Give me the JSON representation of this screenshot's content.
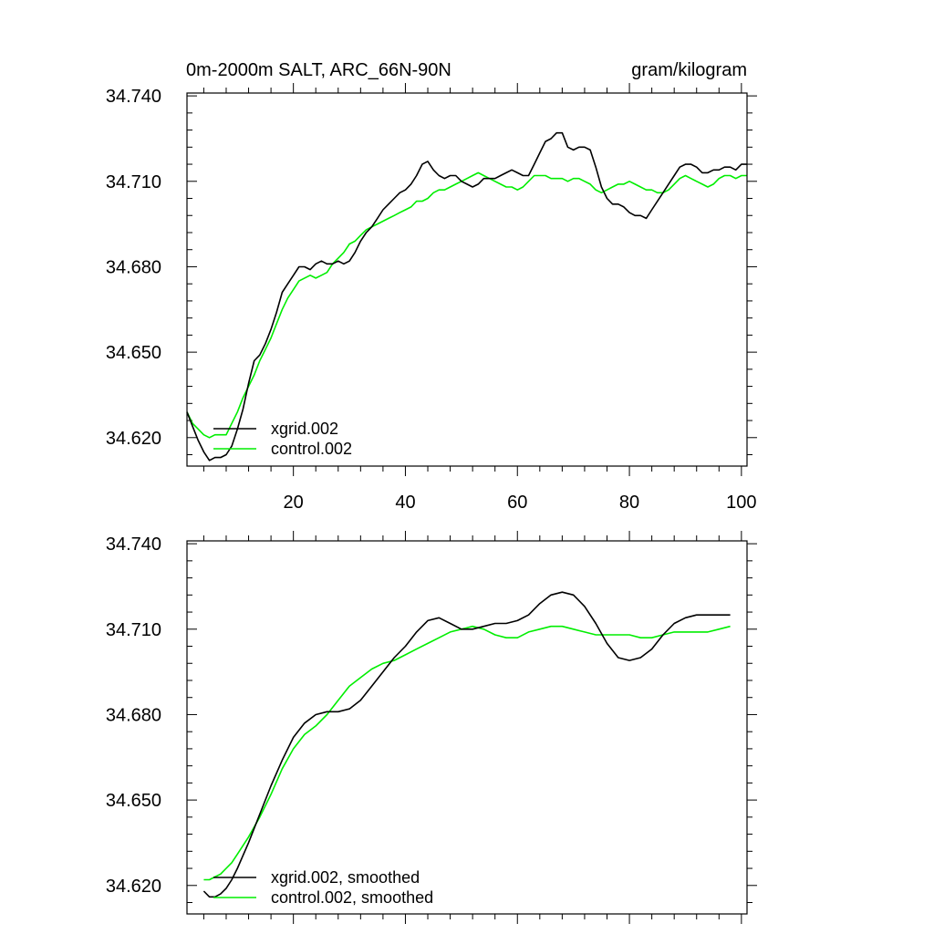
{
  "colors": {
    "xgrid": "#000000",
    "control": "#00ee00"
  },
  "chart_data": [
    {
      "type": "line",
      "title": "0m-2000m SALT, ARC_66N-90N",
      "units": "gram/kilogram",
      "xlim": [
        1,
        101
      ],
      "ylim": [
        34.61,
        34.741
      ],
      "xticks": [
        20,
        40,
        60,
        80,
        100
      ],
      "xtick_labels": [
        "20",
        "40",
        "60",
        "80",
        "100"
      ],
      "yticks": [
        34.62,
        34.65,
        34.68,
        34.71,
        34.74
      ],
      "ytick_labels": [
        "34.620",
        "34.650",
        "34.680",
        "34.710",
        "34.740"
      ],
      "legend_position": "bottom-left",
      "series": [
        {
          "name": "xgrid.002",
          "color": "#000000",
          "x": [
            1,
            2,
            3,
            4,
            5,
            6,
            7,
            8,
            9,
            10,
            11,
            12,
            13,
            14,
            15,
            16,
            17,
            18,
            19,
            20,
            21,
            22,
            23,
            24,
            25,
            26,
            27,
            28,
            29,
            30,
            31,
            32,
            33,
            34,
            35,
            36,
            37,
            38,
            39,
            40,
            41,
            42,
            43,
            44,
            45,
            46,
            47,
            48,
            49,
            50,
            51,
            52,
            53,
            54,
            55,
            56,
            57,
            58,
            59,
            60,
            61,
            62,
            63,
            64,
            65,
            66,
            67,
            68,
            69,
            70,
            71,
            72,
            73,
            74,
            75,
            76,
            77,
            78,
            79,
            80,
            81,
            82,
            83,
            84,
            85,
            86,
            87,
            88,
            89,
            90,
            91,
            92,
            93,
            94,
            95,
            96,
            97,
            98,
            99,
            100,
            101
          ],
          "y": [
            34.629,
            34.624,
            34.619,
            34.615,
            34.612,
            34.613,
            34.613,
            34.614,
            34.617,
            34.623,
            34.63,
            34.639,
            34.647,
            34.649,
            34.653,
            34.658,
            34.664,
            34.671,
            34.674,
            34.677,
            34.68,
            34.68,
            34.679,
            34.681,
            34.682,
            34.681,
            34.681,
            34.682,
            34.681,
            34.682,
            34.685,
            34.689,
            34.692,
            34.694,
            34.697,
            34.7,
            34.702,
            34.704,
            34.706,
            34.707,
            34.709,
            34.712,
            34.716,
            34.717,
            34.714,
            34.712,
            34.711,
            34.712,
            34.712,
            34.71,
            34.709,
            34.708,
            34.709,
            34.711,
            34.711,
            34.711,
            34.712,
            34.713,
            34.714,
            34.713,
            34.712,
            34.712,
            34.716,
            34.72,
            34.724,
            34.725,
            34.727,
            34.727,
            34.722,
            34.721,
            34.722,
            34.722,
            34.721,
            34.715,
            34.708,
            34.704,
            34.702,
            34.702,
            34.701,
            34.699,
            34.698,
            34.698,
            34.697,
            34.7,
            34.703,
            34.706,
            34.709,
            34.712,
            34.715,
            34.716,
            34.716,
            34.715,
            34.713,
            34.713,
            34.714,
            34.714,
            34.715,
            34.715,
            34.714,
            34.716,
            34.716
          ]
        },
        {
          "name": "control.002",
          "color": "#00ee00",
          "x": [
            1,
            2,
            3,
            4,
            5,
            6,
            7,
            8,
            9,
            10,
            11,
            12,
            13,
            14,
            15,
            16,
            17,
            18,
            19,
            20,
            21,
            22,
            23,
            24,
            25,
            26,
            27,
            28,
            29,
            30,
            31,
            32,
            33,
            34,
            35,
            36,
            37,
            38,
            39,
            40,
            41,
            42,
            43,
            44,
            45,
            46,
            47,
            48,
            49,
            50,
            51,
            52,
            53,
            54,
            55,
            56,
            57,
            58,
            59,
            60,
            61,
            62,
            63,
            64,
            65,
            66,
            67,
            68,
            69,
            70,
            71,
            72,
            73,
            74,
            75,
            76,
            77,
            78,
            79,
            80,
            81,
            82,
            83,
            84,
            85,
            86,
            87,
            88,
            89,
            90,
            91,
            92,
            93,
            94,
            95,
            96,
            97,
            98,
            99,
            100,
            101
          ],
          "y": [
            34.629,
            34.625,
            34.623,
            34.621,
            34.62,
            34.621,
            34.621,
            34.621,
            34.625,
            34.629,
            34.634,
            34.638,
            34.642,
            34.647,
            34.651,
            34.655,
            34.66,
            34.665,
            34.669,
            34.672,
            34.675,
            34.676,
            34.677,
            34.676,
            34.677,
            34.678,
            34.681,
            34.683,
            34.685,
            34.688,
            34.689,
            34.691,
            34.693,
            34.694,
            34.695,
            34.696,
            34.697,
            34.698,
            34.699,
            34.7,
            34.701,
            34.703,
            34.703,
            34.704,
            34.706,
            34.707,
            34.707,
            34.708,
            34.709,
            34.71,
            34.711,
            34.712,
            34.713,
            34.712,
            34.711,
            34.71,
            34.709,
            34.708,
            34.708,
            34.707,
            34.708,
            34.71,
            34.712,
            34.712,
            34.712,
            34.711,
            34.711,
            34.711,
            34.71,
            34.711,
            34.711,
            34.71,
            34.709,
            34.707,
            34.706,
            34.707,
            34.708,
            34.709,
            34.709,
            34.71,
            34.709,
            34.708,
            34.707,
            34.707,
            34.706,
            34.706,
            34.707,
            34.709,
            34.711,
            34.712,
            34.711,
            34.71,
            34.709,
            34.708,
            34.709,
            34.711,
            34.712,
            34.712,
            34.711,
            34.712,
            34.712
          ]
        }
      ]
    },
    {
      "type": "line",
      "xlim": [
        1,
        101
      ],
      "ylim": [
        34.61,
        34.741
      ],
      "xticks": [
        20,
        40,
        60,
        80,
        100
      ],
      "yticks": [
        34.62,
        34.65,
        34.68,
        34.71,
        34.74
      ],
      "ytick_labels": [
        "34.620",
        "34.650",
        "34.680",
        "34.710",
        "34.740"
      ],
      "legend_position": "bottom-left",
      "series": [
        {
          "name": "xgrid.002, smoothed",
          "color": "#000000",
          "x": [
            4,
            5,
            6,
            7,
            8,
            9,
            10,
            12,
            14,
            16,
            18,
            20,
            22,
            24,
            26,
            28,
            30,
            32,
            34,
            36,
            38,
            40,
            42,
            44,
            46,
            48,
            50,
            52,
            54,
            56,
            58,
            60,
            62,
            64,
            66,
            68,
            70,
            72,
            74,
            76,
            78,
            80,
            82,
            84,
            86,
            88,
            90,
            92,
            94,
            96,
            98
          ],
          "y": [
            34.618,
            34.616,
            34.616,
            34.617,
            34.619,
            34.622,
            34.626,
            34.635,
            34.645,
            34.655,
            34.664,
            34.672,
            34.677,
            34.68,
            34.681,
            34.681,
            34.682,
            34.685,
            34.69,
            34.695,
            34.7,
            34.704,
            34.709,
            34.713,
            34.714,
            34.712,
            34.71,
            34.71,
            34.711,
            34.712,
            34.712,
            34.713,
            34.715,
            34.719,
            34.722,
            34.723,
            34.722,
            34.718,
            34.712,
            34.705,
            34.7,
            34.699,
            34.7,
            34.703,
            34.708,
            34.712,
            34.714,
            34.715,
            34.715,
            34.715,
            34.715
          ]
        },
        {
          "name": "control.002, smoothed",
          "color": "#00ee00",
          "x": [
            4,
            5,
            6,
            7,
            8,
            9,
            10,
            12,
            14,
            16,
            18,
            20,
            22,
            24,
            26,
            28,
            30,
            32,
            34,
            36,
            38,
            40,
            42,
            44,
            46,
            48,
            50,
            52,
            54,
            56,
            58,
            60,
            62,
            64,
            66,
            68,
            70,
            72,
            74,
            76,
            78,
            80,
            82,
            84,
            86,
            88,
            90,
            92,
            94,
            96,
            98
          ],
          "y": [
            34.622,
            34.622,
            34.623,
            34.624,
            34.626,
            34.628,
            34.631,
            34.637,
            34.644,
            34.652,
            34.661,
            34.668,
            34.673,
            34.676,
            34.68,
            34.685,
            34.69,
            34.693,
            34.696,
            34.698,
            34.699,
            34.701,
            34.703,
            34.705,
            34.707,
            34.709,
            34.71,
            34.711,
            34.71,
            34.708,
            34.707,
            34.707,
            34.709,
            34.71,
            34.711,
            34.711,
            34.71,
            34.709,
            34.708,
            34.708,
            34.708,
            34.708,
            34.707,
            34.707,
            34.708,
            34.709,
            34.709,
            34.709,
            34.709,
            34.71,
            34.711
          ]
        }
      ]
    }
  ]
}
